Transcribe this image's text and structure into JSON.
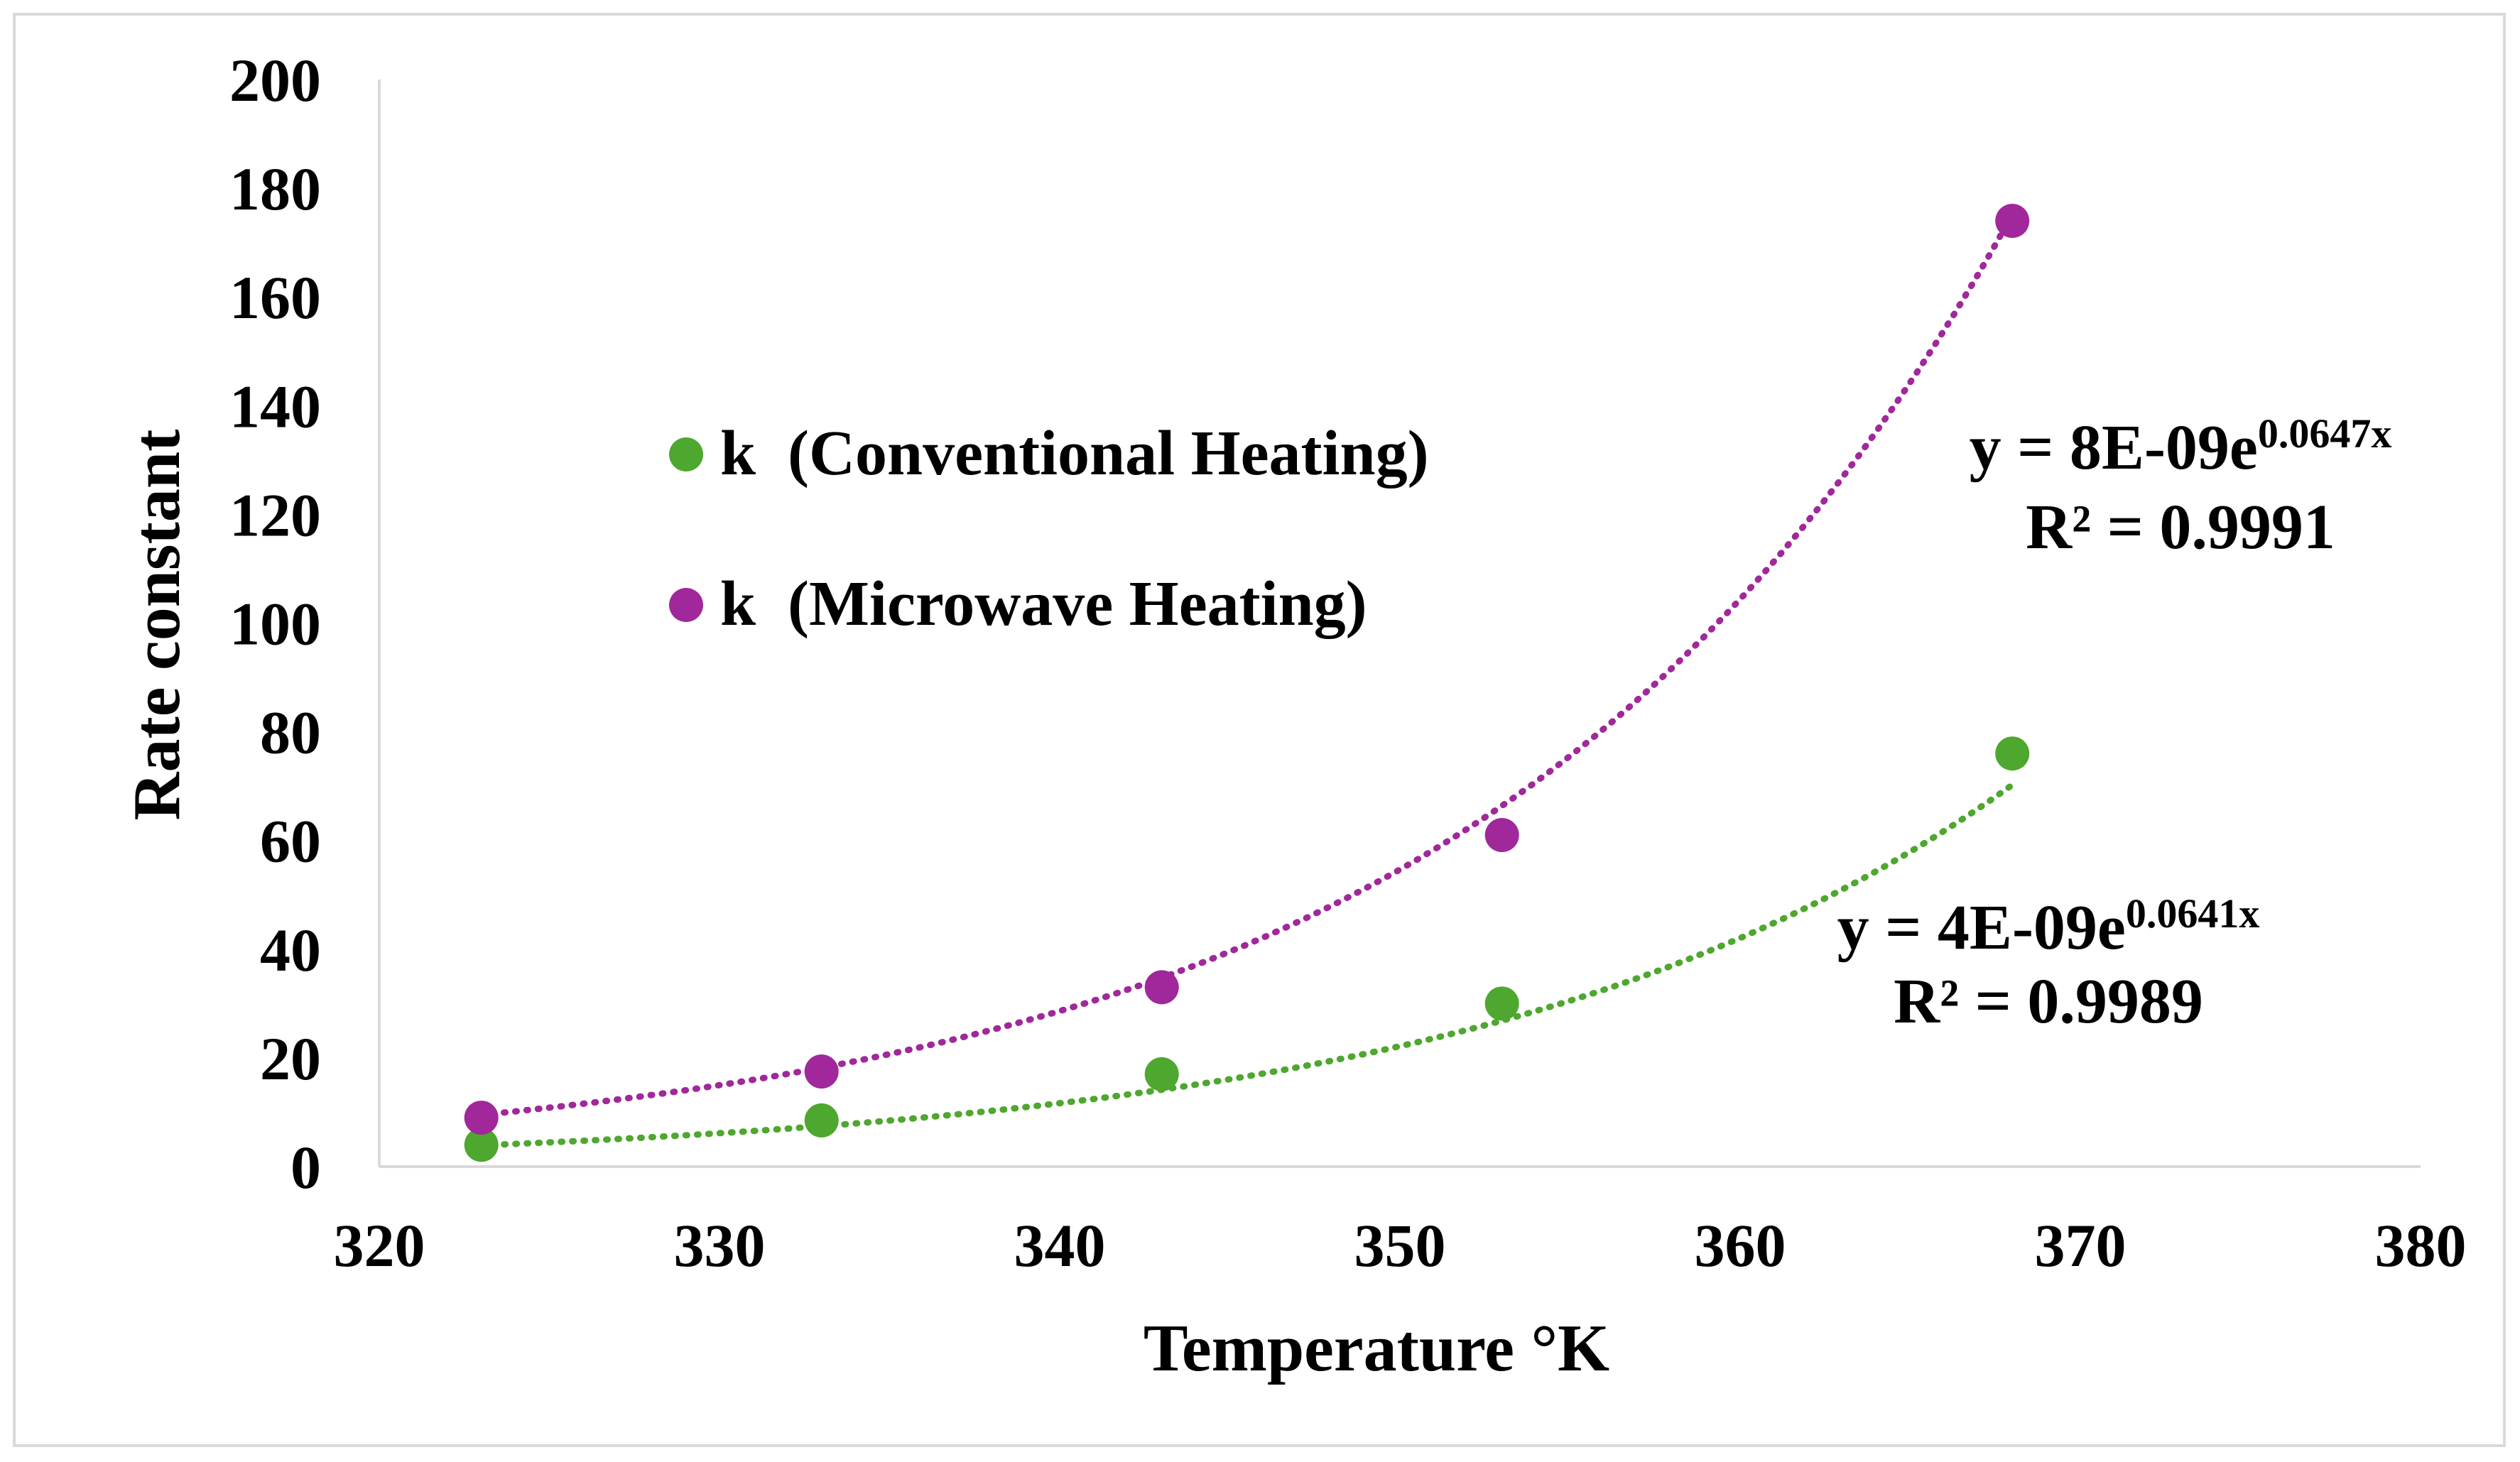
{
  "chart_data": {
    "type": "scatter",
    "title": "",
    "xlabel": "Temperature °K",
    "ylabel": "Rate constant",
    "xlim": [
      320,
      380
    ],
    "ylim": [
      0,
      200
    ],
    "xticks": [
      "320",
      "330",
      "340",
      "350",
      "360",
      "370",
      "380"
    ],
    "yticks": [
      "0",
      "20",
      "40",
      "60",
      "80",
      "100",
      "120",
      "140",
      "160",
      "180",
      "200"
    ],
    "grid": false,
    "legend_position": "upper-left",
    "series": [
      {
        "name": "k  (Conventional Heating)",
        "color": "#4ea72e",
        "x": [
          323,
          333,
          343,
          353,
          368
        ],
        "y": [
          4,
          8.5,
          17,
          30,
          76
        ],
        "trendline": {
          "type": "exponential",
          "a": 4e-09,
          "b": 0.0641,
          "equation_main": "y = 4E-09e",
          "equation_sup": "0.0641x",
          "r2": "R² = 0.9989"
        }
      },
      {
        "name": "k  (Microwave Heating)",
        "color": "#a0289a",
        "x": [
          323,
          333,
          343,
          353,
          368
        ],
        "y": [
          9,
          17.5,
          33,
          61,
          174
        ],
        "trendline": {
          "type": "exponential",
          "a": 8e-09,
          "b": 0.0647,
          "equation_main": "y = 8E-09e",
          "equation_sup": "0.0647x",
          "r2": "R² = 0.9991"
        }
      }
    ]
  }
}
